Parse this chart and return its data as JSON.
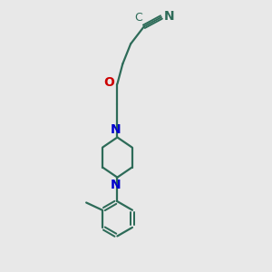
{
  "bg_color": "#e8e8e8",
  "bond_color": "#2d6b58",
  "N_color": "#0000cc",
  "O_color": "#cc0000",
  "line_width": 1.6,
  "font_size_label": 10,
  "figsize": [
    3.0,
    3.0
  ],
  "dpi": 100,
  "xlim": [
    1.0,
    6.0
  ],
  "ylim": [
    0.2,
    10.2
  ]
}
